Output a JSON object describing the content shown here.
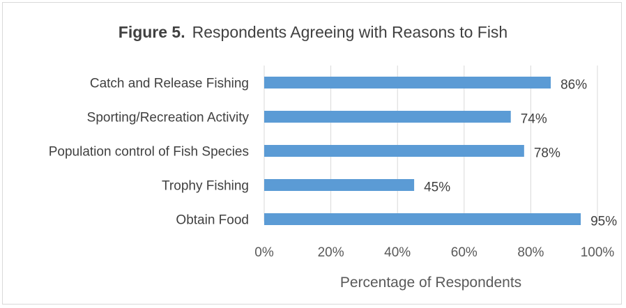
{
  "chart_data": {
    "type": "bar",
    "orientation": "horizontal",
    "title_bold": "Figure 5.",
    "title": "Respondents Agreeing with Reasons to Fish",
    "categories": [
      "Catch and Release Fishing",
      "Sporting/Recreation Activity",
      "Population control of Fish Species",
      "Trophy Fishing",
      "Obtain Food"
    ],
    "values": [
      86,
      74,
      78,
      45,
      95
    ],
    "data_labels": [
      "86%",
      "74%",
      "78%",
      "45%",
      "95%"
    ],
    "xlabel": "Percentage of Respondents",
    "xlim": [
      0,
      100
    ],
    "xticks": [
      0,
      20,
      40,
      60,
      80,
      100
    ],
    "xtick_labels": [
      "0%",
      "20%",
      "40%",
      "60%",
      "80%",
      "100%"
    ],
    "grid": true,
    "bar_color": "#5b9bd5",
    "grid_color": "#d9d9d9"
  }
}
